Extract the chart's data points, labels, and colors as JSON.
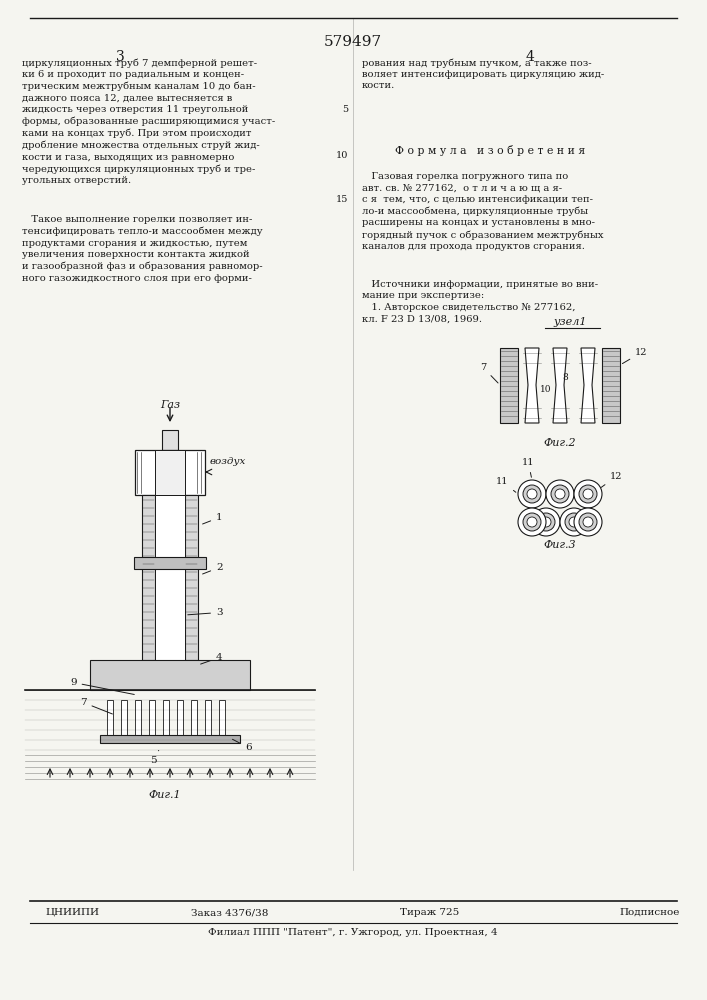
{
  "page_number": "579497",
  "col_left": "3",
  "col_right": "4",
  "text_left_top": "циркуляционных труб 7 демпферной решет-\nки 6 и проходит по радиальным и концен-\nтрическим межтрубным каналам 10 до бан-\nдажного пояса 12, далее вытесняется в\nжидкость через отверстия 11 треугольной\nформы, образованные расширяющимися участ-\nками на концах труб. При этом происходит\nдробление множества отдельных струй жид-\nкости и газа, выходящих из равномерно\nчередующихся циркуляционных труб и тре-\nугольных отверстий.",
  "text_left_bottom": "   Такое выполнение горелки позволяет ин-\nтенсифицировать тепло-и массообмен между\nпродуктами сгорания и жидкостью, путем\nувеличения поверхности контакта жидкой\nи газообразной фаз и образования равномор-\nного газожидкостного слоя при его форми-",
  "formula_header": "Ф о р м у л а   и з о б р е т е н и я",
  "text_right_formula": "   Газовая горелка погружного типа по\nавт. св. № 277162,  о т л и ч а ю щ а я-\nс я  тем, что, с целью интенсификации теп-\nло-и массообмена, циркуляционные трубы\nрасширены на концах и установлены в мно-\nгорядный пучок с образованием межтрубных\nканалов для прохода продуктов сгорания.",
  "text_right_sources": "   Источники информации, принятые во вни-\nмание при экспертизе:\n   1. Авторское свидетельство № 277162,\nкл. F 23 D 13/08, 1969.",
  "line_numbers_left": [
    "5",
    "10",
    "15"
  ],
  "line_numbers_right": [],
  "fig1_label": "Фиг.1",
  "fig2_label": "Фиг.2",
  "fig3_label": "Фиг.3",
  "uzell_label": "узел1",
  "gaz_label": "Газ",
  "vozduh_label": "воздух",
  "footer_org": "ЦНИИПИ",
  "footer_order": "Заказ 4376/38",
  "footer_tirazh": "Тираж 725",
  "footer_sign": "Подписное",
  "footer_filial": "Филиал ППП \"Патент\", г. Ужгород, ул. Проектная, 4",
  "bg_color": "#f5f5f0",
  "text_color": "#1a1a1a",
  "line_color": "#1a1a1a"
}
